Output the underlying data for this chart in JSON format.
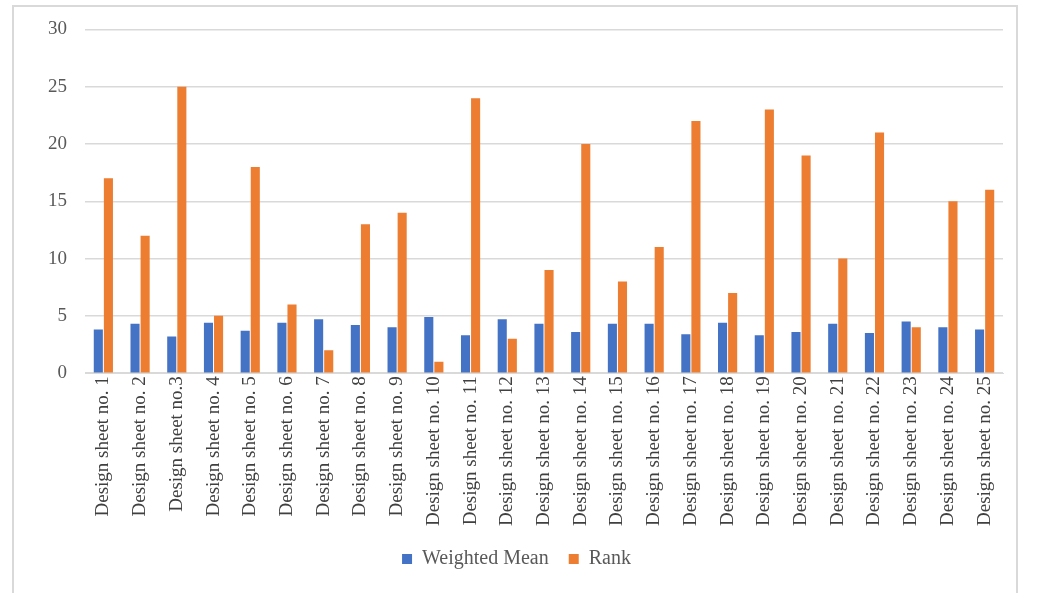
{
  "chart_data": {
    "type": "bar",
    "categories": [
      "Design sheet no. 1",
      "Design sheet no. 2",
      "Design sheet no.3",
      "Design sheet no. 4",
      "Design sheet no. 5",
      "Design sheet no. 6",
      "Design sheet no. 7",
      "Design sheet no. 8",
      "Design sheet no. 9",
      "Design sheet no. 10",
      "Design sheet no. 11",
      "Design sheet no. 12",
      "Design sheet no. 13",
      "Design sheet no. 14",
      "Design sheet no. 15",
      "Design sheet no. 16",
      "Design sheet no. 17",
      "Design sheet no. 18",
      "Design sheet no. 19",
      "Design sheet no. 20",
      "Design sheet no. 21",
      "Design sheet no. 22",
      "Design sheet no. 23",
      "Design sheet no. 24",
      "Design sheet no. 25"
    ],
    "series": [
      {
        "name": "Weighted Mean",
        "color": "#4472c4",
        "values": [
          3.8,
          4.3,
          3.2,
          4.4,
          3.7,
          4.4,
          4.7,
          4.2,
          4.0,
          4.9,
          3.3,
          4.7,
          4.3,
          3.6,
          4.3,
          4.3,
          3.4,
          4.4,
          3.3,
          3.6,
          4.3,
          3.5,
          4.5,
          4.0,
          3.8
        ]
      },
      {
        "name": "Rank",
        "color": "#ed7d31",
        "values": [
          17,
          12,
          25,
          5,
          18,
          6,
          2,
          13,
          14,
          1,
          24,
          3,
          9,
          20,
          8,
          11,
          22,
          7,
          23,
          19,
          10,
          21,
          4,
          15,
          16
        ]
      }
    ],
    "ylim": [
      0,
      30
    ],
    "yticks": [
      0,
      5,
      10,
      15,
      20,
      25,
      30
    ],
    "grid": "y",
    "legend": "bottom"
  }
}
